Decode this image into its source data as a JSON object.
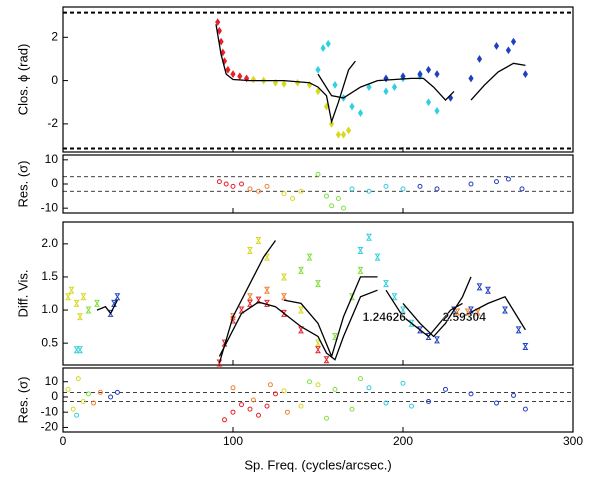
{
  "chart_data": [
    {
      "type": "scatter",
      "ylabel": "Clos. ϕ (rad)",
      "ylim": [
        -3.3,
        3.4
      ],
      "yticks": [
        -2,
        0,
        2
      ],
      "reference_lines": [
        3.14,
        -3.14
      ],
      "reference_style": "dashed-thick",
      "marker": "diamond",
      "series": [
        {
          "style": "points",
          "color": "#e8202a",
          "x": [
            91,
            92,
            93,
            94,
            95,
            97,
            100,
            104,
            108
          ],
          "values": [
            2.7,
            2.3,
            1.8,
            1.3,
            0.9,
            0.5,
            0.3,
            0.2,
            0.1
          ]
        },
        {
          "style": "points",
          "color": "#d8d820",
          "x": [
            112,
            118,
            125,
            130,
            138,
            145,
            150,
            155,
            158,
            162,
            165,
            168
          ],
          "values": [
            0.05,
            0.0,
            -0.1,
            -0.15,
            -0.1,
            -0.2,
            -0.5,
            -1.2,
            -2.0,
            -2.5,
            -2.5,
            -2.3
          ]
        },
        {
          "style": "points",
          "color": "#30d0e0",
          "x": [
            150,
            153,
            156,
            160,
            165,
            170,
            175,
            180,
            190,
            195,
            200,
            210,
            215,
            220
          ],
          "values": [
            0.5,
            1.5,
            1.7,
            -0.2,
            -0.8,
            -1.2,
            -1.5,
            -0.3,
            -0.5,
            -0.3,
            0.1,
            0.2,
            -1.0,
            -1.4
          ]
        },
        {
          "style": "points",
          "color": "#2040c0",
          "x": [
            190,
            200,
            210,
            215,
            220,
            228,
            240,
            245,
            255,
            262,
            265,
            272
          ],
          "values": [
            0.1,
            0.2,
            0.3,
            0.5,
            0.3,
            -0.8,
            0.1,
            1.0,
            1.6,
            1.4,
            1.8,
            0.3
          ]
        },
        {
          "style": "line",
          "color": "#000000",
          "x": [
            90,
            93,
            96,
            100,
            110,
            130,
            145,
            150,
            155,
            158,
            162,
            168,
            172
          ],
          "values": [
            2.6,
            1.2,
            0.3,
            0.05,
            0,
            0,
            -0.1,
            -0.3,
            -0.7,
            -1.9,
            -1.0,
            0.5,
            0.9
          ]
        },
        {
          "style": "line",
          "color": "#000000",
          "x": [
            150,
            158,
            165,
            175,
            185,
            195,
            205,
            212,
            218,
            225,
            230
          ],
          "values": [
            0.3,
            -0.7,
            -0.8,
            -0.3,
            0.0,
            0.05,
            0.1,
            0.1,
            -0.3,
            -0.9,
            -0.5
          ]
        },
        {
          "style": "line",
          "color": "#000000",
          "x": [
            240,
            248,
            256,
            265,
            272
          ],
          "values": [
            -0.9,
            -0.2,
            0.4,
            0.8,
            0.7
          ]
        }
      ]
    },
    {
      "type": "scatter",
      "ylabel": "Res. (σ)",
      "ylim": [
        -12,
        12
      ],
      "yticks": [
        -10,
        0,
        10
      ],
      "reference_lines": [
        3,
        -3
      ],
      "reference_style": "dashed",
      "marker": "circle-open",
      "series": [
        {
          "style": "points",
          "color": "#e8202a",
          "x": [
            92,
            96,
            100,
            105
          ],
          "values": [
            1,
            0,
            -1,
            0
          ]
        },
        {
          "style": "points",
          "color": "#f08030",
          "x": [
            110,
            115,
            120
          ],
          "values": [
            -2,
            -3,
            -1
          ]
        },
        {
          "style": "points",
          "color": "#d8d820",
          "x": [
            130,
            135,
            140
          ],
          "values": [
            -4,
            -6,
            -3
          ]
        },
        {
          "style": "points",
          "color": "#80e040",
          "x": [
            150,
            155,
            158,
            162,
            165
          ],
          "values": [
            4,
            -5,
            -9,
            -6,
            -10
          ]
        },
        {
          "style": "points",
          "color": "#30d0e0",
          "x": [
            170,
            180,
            190,
            200
          ],
          "values": [
            -2,
            -3,
            -1,
            -2
          ]
        },
        {
          "style": "points",
          "color": "#2040c0",
          "x": [
            210,
            220,
            240,
            255,
            262,
            270
          ],
          "values": [
            -1,
            -2,
            0,
            1,
            2,
            -2
          ]
        }
      ]
    },
    {
      "type": "scatter",
      "ylabel": "Diff. Vis.",
      "ylim": [
        0.17,
        2.33
      ],
      "yticks": [
        0.5,
        {
          "value": 1,
          "label": "1.0"
        },
        1.5,
        {
          "value": 2,
          "label": "2.0"
        }
      ],
      "marker": "bowtie",
      "annotations": [
        {
          "text": "1.24626",
          "x": 189,
          "y": 0.88
        },
        {
          "text": "2.59304",
          "x": 236,
          "y": 0.88
        }
      ],
      "series": [
        {
          "style": "points",
          "color": "#d8d820",
          "x": [
            3,
            5,
            8,
            10,
            12,
            110,
            115,
            120,
            130,
            140,
            150
          ],
          "values": [
            1.2,
            1.3,
            1.1,
            0.9,
            1.2,
            1.9,
            2.05,
            1.8,
            1.5,
            1.0,
            0.5
          ]
        },
        {
          "style": "points",
          "color": "#30d0e0",
          "x": [
            8,
            10,
            175,
            180,
            185,
            190,
            195,
            200,
            205
          ],
          "values": [
            0.4,
            0.4,
            1.9,
            2.1,
            1.8,
            1.4,
            1.2,
            1.0,
            0.8
          ]
        },
        {
          "style": "points",
          "color": "#80e040",
          "x": [
            15,
            20,
            140,
            145,
            150,
            160,
            170,
            175
          ],
          "values": [
            1.0,
            1.1,
            1.6,
            1.8,
            1.4,
            0.6,
            1.2,
            1.6
          ]
        },
        {
          "style": "points",
          "color": "#2040c0",
          "x": [
            28,
            30,
            32,
            210,
            215,
            220,
            230,
            240,
            245,
            250,
            260,
            268,
            272
          ],
          "values": [
            0.95,
            1.1,
            1.2,
            0.7,
            0.6,
            0.55,
            1.0,
            1.0,
            1.35,
            1.3,
            1.0,
            0.7,
            0.45
          ]
        },
        {
          "style": "points",
          "color": "#e8202a",
          "x": [
            92,
            95,
            100,
            105,
            110,
            115,
            120,
            130,
            140,
            150,
            155
          ],
          "values": [
            0.2,
            0.5,
            0.85,
            1.0,
            1.1,
            1.15,
            1.1,
            0.95,
            0.7,
            0.4,
            0.25
          ]
        },
        {
          "style": "points",
          "color": "#f08030",
          "x": [
            100,
            110,
            120,
            130,
            232,
            238,
            244
          ],
          "values": [
            0.9,
            1.2,
            1.3,
            1.2,
            0.97,
            0.97,
            0.97
          ]
        },
        {
          "style": "line",
          "color": "#000000",
          "x": [
            20,
            25,
            28,
            32
          ],
          "values": [
            1.0,
            1.05,
            0.95,
            1.15
          ]
        },
        {
          "style": "line",
          "color": "#000000",
          "x": [
            92,
            100,
            110,
            118,
            125
          ],
          "values": [
            0.2,
            0.9,
            1.4,
            1.8,
            2.05
          ]
        },
        {
          "style": "line",
          "color": "#000000",
          "x": [
            92,
            105,
            115,
            125,
            140,
            150,
            155,
            160,
            165,
            175,
            185
          ],
          "values": [
            0.3,
            0.95,
            1.12,
            1.05,
            0.75,
            0.6,
            0.35,
            0.25,
            0.6,
            1.2,
            1.3
          ]
        },
        {
          "style": "line",
          "color": "#000000",
          "x": [
            130,
            140,
            150,
            158,
            165,
            175,
            185
          ],
          "values": [
            1.15,
            1.1,
            0.8,
            0.3,
            0.9,
            1.5,
            1.5
          ]
        },
        {
          "style": "line",
          "color": "#000000",
          "x": [
            190,
            200,
            215,
            228,
            235
          ],
          "values": [
            1.3,
            0.9,
            0.6,
            1.0,
            1.1
          ]
        },
        {
          "style": "line",
          "color": "#000000",
          "x": [
            200,
            210,
            218,
            225,
            235,
            240
          ],
          "values": [
            1.1,
            0.8,
            0.6,
            0.8,
            1.2,
            1.5
          ]
        },
        {
          "style": "line",
          "color": "#000000",
          "x": [
            235,
            250,
            260,
            272
          ],
          "values": [
            0.9,
            1.1,
            1.2,
            0.7
          ]
        }
      ]
    },
    {
      "type": "scatter",
      "ylabel": "Res. (σ)",
      "xlabel": "Sp. Freq. (cycles/arcsec.)",
      "xlim": [
        0,
        300
      ],
      "xticks": [
        0,
        100,
        200,
        300
      ],
      "ylim": [
        -23,
        19
      ],
      "yticks": [
        -20,
        -10,
        0,
        10
      ],
      "reference_lines": [
        3,
        -3
      ],
      "reference_style": "dashed",
      "marker": "circle-open",
      "series": [
        {
          "style": "points",
          "color": "#d8d820",
          "x": [
            3,
            6,
            9,
            12,
            130,
            140,
            150
          ],
          "values": [
            5,
            -8,
            12,
            -3,
            4,
            -6,
            8
          ]
        },
        {
          "style": "points",
          "color": "#e8202a",
          "x": [
            95,
            100,
            105,
            110,
            115,
            120,
            125
          ],
          "values": [
            -15,
            -10,
            -5,
            -8,
            -12,
            -6,
            2
          ]
        },
        {
          "style": "points",
          "color": "#f08030",
          "x": [
            18,
            22,
            100,
            112,
            122,
            132
          ],
          "values": [
            -4,
            3,
            6,
            -2,
            8,
            -10
          ]
        },
        {
          "style": "points",
          "color": "#80e040",
          "x": [
            15,
            145,
            155,
            160,
            170,
            175
          ],
          "values": [
            2,
            10,
            -14,
            5,
            -8,
            12
          ]
        },
        {
          "style": "points",
          "color": "#30d0e0",
          "x": [
            8,
            180,
            190,
            200,
            205
          ],
          "values": [
            -12,
            6,
            -4,
            9,
            -6
          ]
        },
        {
          "style": "points",
          "color": "#2040c0",
          "x": [
            28,
            32,
            215,
            225,
            240,
            255,
            265,
            272
          ],
          "values": [
            0,
            3,
            -3,
            5,
            2,
            -4,
            1,
            -8
          ]
        }
      ]
    }
  ]
}
